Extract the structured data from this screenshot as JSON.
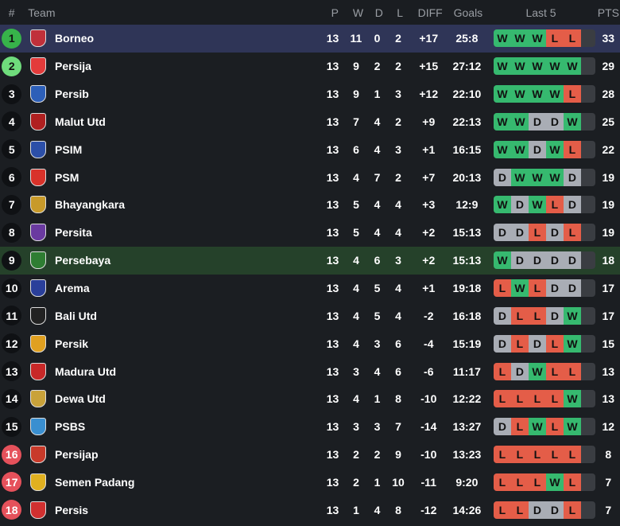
{
  "header": {
    "pos": "#",
    "team": "Team",
    "p": "P",
    "w": "W",
    "d": "D",
    "l": "L",
    "diff": "DIFF",
    "goals": "Goals",
    "form": "Last 5",
    "pts": "PTS"
  },
  "colors": {
    "champion": "#37b34a",
    "qualify": "#6fdc7c",
    "relegation": "#e5515b",
    "win": "#36b96f",
    "draw": "#a9adb5",
    "loss": "#e45d48",
    "highlight_row": "#2f3557",
    "favorite_row": "#25412a"
  },
  "rows": [
    {
      "pos": "1",
      "team": "Borneo",
      "p": "13",
      "w": "11",
      "d": "0",
      "l": "2",
      "diff": "+17",
      "goals": "25:8",
      "form": [
        "W",
        "W",
        "W",
        "L",
        "L"
      ],
      "pts": "33",
      "zone": "champion",
      "logo_color": "#c0303a"
    },
    {
      "pos": "2",
      "team": "Persija",
      "p": "13",
      "w": "9",
      "d": "2",
      "l": "2",
      "diff": "+15",
      "goals": "27:12",
      "form": [
        "W",
        "W",
        "W",
        "W",
        "W"
      ],
      "pts": "29",
      "zone": "qualify",
      "logo_color": "#e33b3b"
    },
    {
      "pos": "3",
      "team": "Persib",
      "p": "13",
      "w": "9",
      "d": "1",
      "l": "3",
      "diff": "+12",
      "goals": "22:10",
      "form": [
        "W",
        "W",
        "W",
        "W",
        "L"
      ],
      "pts": "28",
      "zone": "",
      "logo_color": "#2d5fb8"
    },
    {
      "pos": "4",
      "team": "Malut Utd",
      "p": "13",
      "w": "7",
      "d": "4",
      "l": "2",
      "diff": "+9",
      "goals": "22:13",
      "form": [
        "W",
        "W",
        "D",
        "D",
        "W"
      ],
      "pts": "25",
      "zone": "",
      "logo_color": "#b02020"
    },
    {
      "pos": "5",
      "team": "PSIM",
      "p": "13",
      "w": "6",
      "d": "4",
      "l": "3",
      "diff": "+1",
      "goals": "16:15",
      "form": [
        "W",
        "W",
        "D",
        "W",
        "L"
      ],
      "pts": "22",
      "zone": "",
      "logo_color": "#2c4fa8"
    },
    {
      "pos": "6",
      "team": "PSM",
      "p": "13",
      "w": "4",
      "d": "7",
      "l": "2",
      "diff": "+7",
      "goals": "20:13",
      "form": [
        "D",
        "W",
        "W",
        "W",
        "D"
      ],
      "pts": "19",
      "zone": "",
      "logo_color": "#d8322a"
    },
    {
      "pos": "7",
      "team": "Bhayangkara",
      "p": "13",
      "w": "5",
      "d": "4",
      "l": "4",
      "diff": "+3",
      "goals": "12:9",
      "form": [
        "W",
        "D",
        "W",
        "L",
        "D"
      ],
      "pts": "19",
      "zone": "",
      "logo_color": "#c89a2a"
    },
    {
      "pos": "8",
      "team": "Persita",
      "p": "13",
      "w": "5",
      "d": "4",
      "l": "4",
      "diff": "+2",
      "goals": "15:13",
      "form": [
        "D",
        "D",
        "L",
        "D",
        "L"
      ],
      "pts": "19",
      "zone": "",
      "logo_color": "#6a3aa0"
    },
    {
      "pos": "9",
      "team": "Persebaya",
      "p": "13",
      "w": "4",
      "d": "6",
      "l": "3",
      "diff": "+2",
      "goals": "15:13",
      "form": [
        "W",
        "D",
        "D",
        "D",
        "D"
      ],
      "pts": "18",
      "zone": "",
      "logo_color": "#2e7d32"
    },
    {
      "pos": "10",
      "team": "Arema",
      "p": "13",
      "w": "4",
      "d": "5",
      "l": "4",
      "diff": "+1",
      "goals": "19:18",
      "form": [
        "L",
        "W",
        "L",
        "D",
        "D"
      ],
      "pts": "17",
      "zone": "",
      "logo_color": "#2a3f9a"
    },
    {
      "pos": "11",
      "team": "Bali Utd",
      "p": "13",
      "w": "4",
      "d": "5",
      "l": "4",
      "diff": "-2",
      "goals": "16:18",
      "form": [
        "D",
        "L",
        "L",
        "D",
        "W"
      ],
      "pts": "17",
      "zone": "",
      "logo_color": "#222222"
    },
    {
      "pos": "12",
      "team": "Persik",
      "p": "13",
      "w": "4",
      "d": "3",
      "l": "6",
      "diff": "-4",
      "goals": "15:19",
      "form": [
        "D",
        "L",
        "D",
        "L",
        "W"
      ],
      "pts": "15",
      "zone": "",
      "logo_color": "#e0a020"
    },
    {
      "pos": "13",
      "team": "Madura Utd",
      "p": "13",
      "w": "3",
      "d": "4",
      "l": "6",
      "diff": "-6",
      "goals": "11:17",
      "form": [
        "L",
        "D",
        "W",
        "L",
        "L"
      ],
      "pts": "13",
      "zone": "",
      "logo_color": "#c82828"
    },
    {
      "pos": "14",
      "team": "Dewa Utd",
      "p": "13",
      "w": "4",
      "d": "1",
      "l": "8",
      "diff": "-10",
      "goals": "12:22",
      "form": [
        "L",
        "L",
        "L",
        "L",
        "W"
      ],
      "pts": "13",
      "zone": "",
      "logo_color": "#c9a23a"
    },
    {
      "pos": "15",
      "team": "PSBS",
      "p": "13",
      "w": "3",
      "d": "3",
      "l": "7",
      "diff": "-14",
      "goals": "13:27",
      "form": [
        "D",
        "L",
        "W",
        "L",
        "W"
      ],
      "pts": "12",
      "zone": "",
      "logo_color": "#3a8fd0"
    },
    {
      "pos": "16",
      "team": "Persijap",
      "p": "13",
      "w": "2",
      "d": "2",
      "l": "9",
      "diff": "-10",
      "goals": "13:23",
      "form": [
        "L",
        "L",
        "L",
        "L",
        "L"
      ],
      "pts": "8",
      "zone": "relegation",
      "logo_color": "#c83a2a"
    },
    {
      "pos": "17",
      "team": "Semen Padang",
      "p": "13",
      "w": "2",
      "d": "1",
      "l": "10",
      "diff": "-11",
      "goals": "9:20",
      "form": [
        "L",
        "L",
        "L",
        "W",
        "L"
      ],
      "pts": "7",
      "zone": "relegation",
      "logo_color": "#e0b020"
    },
    {
      "pos": "18",
      "team": "Persis",
      "p": "13",
      "w": "1",
      "d": "4",
      "l": "8",
      "diff": "-12",
      "goals": "14:26",
      "form": [
        "L",
        "L",
        "D",
        "D",
        "L"
      ],
      "pts": "7",
      "zone": "relegation",
      "logo_color": "#d03030"
    }
  ]
}
